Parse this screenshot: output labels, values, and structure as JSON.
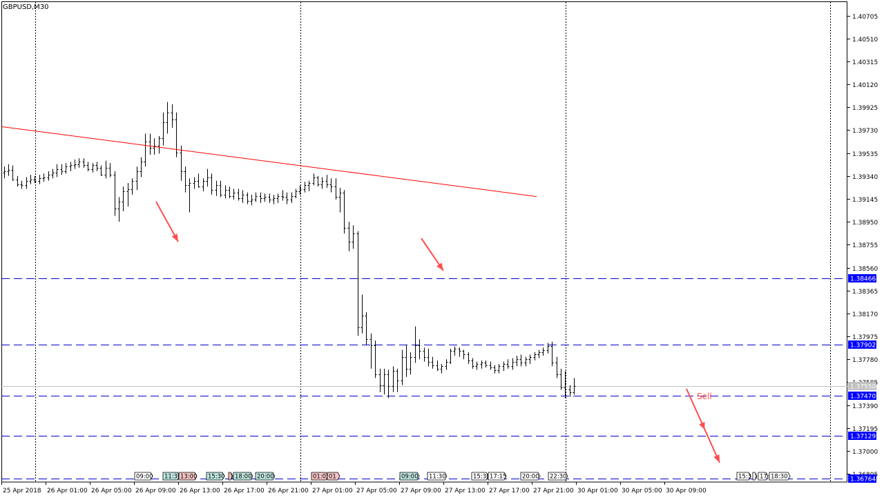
{
  "window": {
    "title": "GBPUSD,M30"
  },
  "colors": {
    "background": "#ffffff",
    "candle": "#000000",
    "trendline": "#ff0000",
    "level_line": "#0000cc",
    "price_tag_bg": "#0000ff",
    "bid_line": "#c0c0c0",
    "arrow": "#ff4d4d",
    "sell_text": "#ff4d4d",
    "grid": "#000000"
  },
  "chart_data": {
    "type": "candlestick",
    "symbol": "GBPUSD",
    "timeframe": "M30",
    "y_ticks": [
      "1.40705",
      "1.40510",
      "1.40315",
      "1.40120",
      "1.39925",
      "1.39730",
      "1.39535",
      "1.39340",
      "1.39145",
      "1.38950",
      "1.38755",
      "1.38560",
      "1.38365",
      "1.38170",
      "1.37975",
      "1.37780",
      "1.37585",
      "1.37390",
      "1.37195",
      "1.37000",
      "1.36805"
    ],
    "y_range": [
      1.36735,
      1.4082
    ],
    "x_labels": [
      "25 Apr 2018",
      "26 Apr 01:00",
      "26 Apr 05:00",
      "26 Apr 09:00",
      "26 Apr 13:00",
      "26 Apr 17:00",
      "26 Apr 21:00",
      "27 Apr 01:00",
      "27 Apr 05:00",
      "27 Apr 09:00",
      "27 Apr 13:00",
      "27 Apr 17:00",
      "27 Apr 21:00",
      "30 Apr 01:00",
      "30 Apr 05:00",
      "30 Apr 09:00"
    ],
    "vertical_grid_labels": [
      "26 Apr 01:00",
      "27 Apr 01:00",
      "30 Apr 01:00"
    ],
    "levels": [
      {
        "price": 1.38466,
        "label": "1.38466"
      },
      {
        "price": 1.37902,
        "label": "1.37902"
      },
      {
        "price": 1.3747,
        "label": "1.37470"
      },
      {
        "price": 1.37129,
        "label": "1.37129"
      },
      {
        "price": 1.36764,
        "label": "1.36764"
      }
    ],
    "bid": {
      "price": 1.3755,
      "label": "1.37550"
    },
    "trendline": {
      "start_price": 1.3976,
      "end_price": 1.39165
    },
    "annotations": [
      {
        "type": "arrow"
      },
      {
        "type": "arrow"
      },
      {
        "type": "arrow_with_text",
        "text": "Sell"
      }
    ],
    "event_markers": [
      {
        "label": "09:00",
        "type": "plain"
      },
      {
        "label": "11:30",
        "type": "teal"
      },
      {
        "label": "13:00",
        "type": "red"
      },
      {
        "label": "15:30",
        "type": "teal"
      },
      {
        "label": "1",
        "type": "red"
      },
      {
        "label": "18:00",
        "type": "teal"
      },
      {
        "label": "20:00",
        "type": "teal"
      },
      {
        "label": "01:05",
        "type": "red"
      },
      {
        "label": "01",
        "type": "red"
      },
      {
        "label": "09:00",
        "type": "teal"
      },
      {
        "label": "11:30",
        "type": "plain"
      },
      {
        "label": "15:30",
        "type": "plain"
      },
      {
        "label": "17:15",
        "type": "plain"
      },
      {
        "label": "20:00",
        "type": "plain"
      },
      {
        "label": "22:30",
        "type": "plain"
      },
      {
        "label": "15:3",
        "type": "plain"
      },
      {
        "label": "1",
        "type": "plain"
      },
      {
        "label": "17:",
        "type": "plain"
      },
      {
        "label": "18:30",
        "type": "plain"
      }
    ],
    "candles": [
      [
        1.3937,
        1.3942,
        1.3932,
        1.3938
      ],
      [
        1.3938,
        1.3944,
        1.3934,
        1.3939
      ],
      [
        1.3939,
        1.3943,
        1.393,
        1.3931
      ],
      [
        1.3931,
        1.3934,
        1.3925,
        1.3927
      ],
      [
        1.3927,
        1.393,
        1.3923,
        1.3926
      ],
      [
        1.3926,
        1.3933,
        1.3923,
        1.393
      ],
      [
        1.393,
        1.3935,
        1.3927,
        1.3931
      ],
      [
        1.3931,
        1.3934,
        1.3928,
        1.393
      ],
      [
        1.393,
        1.3935,
        1.3927,
        1.3932
      ],
      [
        1.3932,
        1.3936,
        1.3929,
        1.3933
      ],
      [
        1.3933,
        1.3938,
        1.393,
        1.3935
      ],
      [
        1.3935,
        1.394,
        1.3932,
        1.3937
      ],
      [
        1.3937,
        1.3944,
        1.3933,
        1.394
      ],
      [
        1.394,
        1.3944,
        1.3935,
        1.3938
      ],
      [
        1.3938,
        1.3945,
        1.3936,
        1.3942
      ],
      [
        1.3942,
        1.3946,
        1.3938,
        1.3943
      ],
      [
        1.3943,
        1.3948,
        1.394,
        1.3944
      ],
      [
        1.3944,
        1.3949,
        1.3941,
        1.3946
      ],
      [
        1.3946,
        1.3949,
        1.3941,
        1.3943
      ],
      [
        1.3943,
        1.3946,
        1.3938,
        1.394
      ],
      [
        1.394,
        1.3945,
        1.3937,
        1.3943
      ],
      [
        1.3943,
        1.3946,
        1.3938,
        1.3941
      ],
      [
        1.3941,
        1.3943,
        1.3934,
        1.3935
      ],
      [
        1.3935,
        1.3947,
        1.3932,
        1.3941
      ],
      [
        1.3941,
        1.3945,
        1.3933,
        1.3935
      ],
      [
        1.3935,
        1.3938,
        1.39,
        1.3906
      ],
      [
        1.3906,
        1.3916,
        1.3895,
        1.3912
      ],
      [
        1.3912,
        1.3925,
        1.3904,
        1.3921
      ],
      [
        1.3921,
        1.3928,
        1.3908,
        1.3923
      ],
      [
        1.3923,
        1.3932,
        1.3918,
        1.393
      ],
      [
        1.393,
        1.3942,
        1.3922,
        1.3938
      ],
      [
        1.3938,
        1.395,
        1.3933,
        1.3946
      ],
      [
        1.3946,
        1.397,
        1.3942,
        1.3963
      ],
      [
        1.3963,
        1.397,
        1.3952,
        1.3958
      ],
      [
        1.3958,
        1.3966,
        1.3952,
        1.396
      ],
      [
        1.396,
        1.3968,
        1.3953,
        1.3966
      ],
      [
        1.3966,
        1.3988,
        1.396,
        1.398
      ],
      [
        1.398,
        1.3997,
        1.397,
        1.3988
      ],
      [
        1.3988,
        1.3995,
        1.3975,
        1.3982
      ],
      [
        1.3982,
        1.3988,
        1.395,
        1.3954
      ],
      [
        1.3954,
        1.396,
        1.393,
        1.3938
      ],
      [
        1.3938,
        1.3942,
        1.392,
        1.3926
      ],
      [
        1.3926,
        1.3932,
        1.3903,
        1.3928
      ],
      [
        1.3928,
        1.3933,
        1.3923,
        1.393
      ],
      [
        1.393,
        1.3936,
        1.3924,
        1.3925
      ],
      [
        1.3925,
        1.3932,
        1.3921,
        1.393
      ],
      [
        1.393,
        1.394,
        1.3925,
        1.3933
      ],
      [
        1.3933,
        1.3936,
        1.3918,
        1.3922
      ],
      [
        1.3922,
        1.393,
        1.3917,
        1.3926
      ],
      [
        1.3926,
        1.393,
        1.3916,
        1.3918
      ],
      [
        1.3918,
        1.3926,
        1.3915,
        1.3922
      ],
      [
        1.3922,
        1.3925,
        1.3915,
        1.3917
      ],
      [
        1.3917,
        1.3923,
        1.3914,
        1.392
      ],
      [
        1.392,
        1.3923,
        1.3913,
        1.3915
      ],
      [
        1.3915,
        1.3922,
        1.3911,
        1.3918
      ],
      [
        1.3918,
        1.392,
        1.391,
        1.3913
      ],
      [
        1.3913,
        1.3918,
        1.3909,
        1.3914
      ],
      [
        1.3914,
        1.392,
        1.3912,
        1.3917
      ],
      [
        1.3917,
        1.392,
        1.3911,
        1.3915
      ],
      [
        1.3915,
        1.3919,
        1.3912,
        1.3916
      ],
      [
        1.3916,
        1.3919,
        1.3911,
        1.3914
      ],
      [
        1.3914,
        1.3918,
        1.391,
        1.3915
      ],
      [
        1.3915,
        1.3919,
        1.3911,
        1.3917
      ],
      [
        1.3917,
        1.3922,
        1.3913,
        1.3916
      ],
      [
        1.3916,
        1.392,
        1.391,
        1.3914
      ],
      [
        1.3914,
        1.392,
        1.3911,
        1.3917
      ],
      [
        1.3917,
        1.3923,
        1.3915,
        1.3921
      ],
      [
        1.3921,
        1.3926,
        1.3918,
        1.3923
      ],
      [
        1.3923,
        1.3929,
        1.392,
        1.3926
      ],
      [
        1.3926,
        1.393,
        1.3921,
        1.3928
      ],
      [
        1.3928,
        1.3936,
        1.3926,
        1.3933
      ],
      [
        1.3933,
        1.3934,
        1.3925,
        1.3927
      ],
      [
        1.3927,
        1.3933,
        1.3923,
        1.393
      ],
      [
        1.393,
        1.3935,
        1.3924,
        1.3927
      ],
      [
        1.3927,
        1.3932,
        1.392,
        1.3925
      ],
      [
        1.3925,
        1.3932,
        1.3914,
        1.3916
      ],
      [
        1.3916,
        1.3924,
        1.3903,
        1.392
      ],
      [
        1.392,
        1.3922,
        1.3885,
        1.389
      ],
      [
        1.389,
        1.3895,
        1.387,
        1.3878
      ],
      [
        1.3878,
        1.3892,
        1.3872,
        1.3885
      ],
      [
        1.3885,
        1.3887,
        1.3798,
        1.3805
      ],
      [
        1.3805,
        1.3833,
        1.38,
        1.3815
      ],
      [
        1.3815,
        1.3818,
        1.379,
        1.3795
      ],
      [
        1.3795,
        1.38,
        1.377,
        1.379
      ],
      [
        1.379,
        1.3794,
        1.3762,
        1.3765
      ],
      [
        1.3765,
        1.377,
        1.375,
        1.3756
      ],
      [
        1.3756,
        1.377,
        1.3748,
        1.3765
      ],
      [
        1.3765,
        1.3769,
        1.3745,
        1.3755
      ],
      [
        1.3755,
        1.3772,
        1.375,
        1.3768
      ],
      [
        1.3768,
        1.377,
        1.375,
        1.376
      ],
      [
        1.376,
        1.3786,
        1.3756,
        1.378
      ],
      [
        1.378,
        1.379,
        1.3763,
        1.377
      ],
      [
        1.377,
        1.3784,
        1.3765,
        1.378
      ],
      [
        1.378,
        1.3806,
        1.3775,
        1.379
      ],
      [
        1.379,
        1.3795,
        1.3778,
        1.3785
      ],
      [
        1.3785,
        1.3788,
        1.3776,
        1.378
      ],
      [
        1.378,
        1.3787,
        1.3772,
        1.3776
      ],
      [
        1.3776,
        1.378,
        1.377,
        1.3773
      ],
      [
        1.3773,
        1.3777,
        1.3768,
        1.377
      ],
      [
        1.377,
        1.3774,
        1.3766,
        1.3772
      ],
      [
        1.3772,
        1.3778,
        1.3769,
        1.3776
      ],
      [
        1.3776,
        1.3787,
        1.3774,
        1.3785
      ],
      [
        1.3785,
        1.3789,
        1.3781,
        1.3787
      ],
      [
        1.3787,
        1.3788,
        1.378,
        1.3785
      ],
      [
        1.3785,
        1.3786,
        1.3778,
        1.3782
      ],
      [
        1.3782,
        1.3784,
        1.3774,
        1.3777
      ],
      [
        1.3777,
        1.3779,
        1.377,
        1.3772
      ],
      [
        1.3772,
        1.3776,
        1.3769,
        1.3774
      ],
      [
        1.3774,
        1.3777,
        1.377,
        1.3775
      ],
      [
        1.3775,
        1.3777,
        1.3771,
        1.3773
      ],
      [
        1.3773,
        1.3776,
        1.3769,
        1.3771
      ],
      [
        1.3771,
        1.3773,
        1.3766,
        1.3769
      ],
      [
        1.3769,
        1.3774,
        1.3766,
        1.3772
      ],
      [
        1.3772,
        1.3776,
        1.3768,
        1.3774
      ],
      [
        1.3774,
        1.3778,
        1.377,
        1.3772
      ],
      [
        1.3772,
        1.3779,
        1.3769,
        1.3776
      ],
      [
        1.3776,
        1.3781,
        1.3772,
        1.3778
      ],
      [
        1.3778,
        1.3782,
        1.3772,
        1.3775
      ],
      [
        1.3775,
        1.378,
        1.3772,
        1.3778
      ],
      [
        1.3778,
        1.3782,
        1.3774,
        1.378
      ],
      [
        1.378,
        1.3784,
        1.3777,
        1.3782
      ],
      [
        1.3782,
        1.3786,
        1.3779,
        1.3784
      ],
      [
        1.3784,
        1.3788,
        1.3781,
        1.3786
      ],
      [
        1.3786,
        1.3792,
        1.3783,
        1.3789
      ],
      [
        1.3789,
        1.3793,
        1.3772,
        1.3775
      ],
      [
        1.3775,
        1.378,
        1.3762,
        1.3765
      ],
      [
        1.3765,
        1.377,
        1.3752,
        1.3754
      ],
      [
        1.3754,
        1.3768,
        1.3745,
        1.3752
      ],
      [
        1.3752,
        1.3756,
        1.3746,
        1.375
      ],
      [
        1.375,
        1.3762,
        1.3748,
        1.3755
      ]
    ]
  }
}
